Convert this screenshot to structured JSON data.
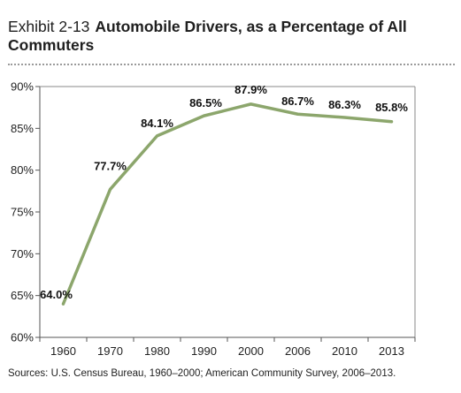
{
  "header": {
    "exhibit": "Exhibit 2-13",
    "title": "Automobile Drivers, as a Percentage of All Commuters"
  },
  "footer": {
    "source": "Sources: U.S. Census Bureau, 1960–2000; American Community Survey, 2006–2013."
  },
  "chart_data": {
    "type": "line",
    "title": "Automobile Drivers, as a Percentage of All Commuters",
    "categories": [
      "1960",
      "1970",
      "1980",
      "1990",
      "2000",
      "2006",
      "2010",
      "2013"
    ],
    "series": [
      {
        "values": [
          64.0,
          77.7,
          84.1,
          86.5,
          87.9,
          86.7,
          86.3,
          85.8
        ],
        "labels": [
          "64.0%",
          "77.7%",
          "84.1%",
          "86.5%",
          "87.9%",
          "86.7%",
          "86.3%",
          "85.8%"
        ],
        "color": "#8ca66c"
      }
    ],
    "yticks": [
      60,
      65,
      70,
      75,
      80,
      85,
      90
    ],
    "ytick_labels": [
      "60%",
      "65%",
      "70%",
      "75%",
      "80%",
      "85%",
      "90%"
    ],
    "ylim": [
      60,
      90
    ],
    "grid": false,
    "legend": "none"
  }
}
